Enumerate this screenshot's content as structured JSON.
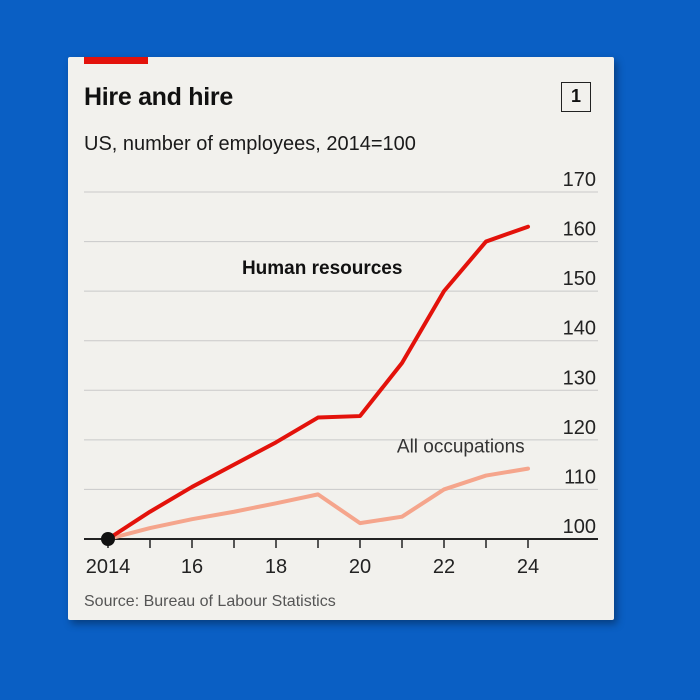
{
  "header": {
    "title": "Hire and hire",
    "subtitle": "US, number of employees, 2014=100",
    "chart_number": "1"
  },
  "footer": {
    "source": "Source: Bureau of Labour Statistics"
  },
  "colors": {
    "background": "#0a5fc4",
    "card": "#f2f1ed",
    "accent": "#e3120b",
    "human_resources": "#e3120b",
    "all_occupations": "#f5a58c"
  },
  "chart_data": {
    "type": "line",
    "title": "Hire and hire",
    "subtitle": "US, number of employees, 2014=100",
    "xlabel": "",
    "ylabel": "",
    "xlim": [
      2014,
      2024
    ],
    "ylim": [
      100,
      170
    ],
    "x_ticks": [
      2014,
      2015,
      2016,
      2017,
      2018,
      2019,
      2020,
      2021,
      2022,
      2023,
      2024
    ],
    "x_tick_labels": [
      {
        "x": 2014,
        "label": "2014"
      },
      {
        "x": 2016,
        "label": "16"
      },
      {
        "x": 2018,
        "label": "18"
      },
      {
        "x": 2020,
        "label": "20"
      },
      {
        "x": 2022,
        "label": "22"
      },
      {
        "x": 2024,
        "label": "24"
      }
    ],
    "y_ticks": [
      100,
      110,
      120,
      130,
      140,
      150,
      160,
      170
    ],
    "grid": true,
    "series": [
      {
        "name": "Human resources",
        "x": [
          2014,
          2015,
          2016,
          2017,
          2018,
          2019,
          2020,
          2021,
          2022,
          2023,
          2024
        ],
        "values": [
          100,
          105.5,
          110.5,
          115,
          119.5,
          124.5,
          124.8,
          135.5,
          150,
          160,
          163
        ]
      },
      {
        "name": "All occupations",
        "x": [
          2014,
          2015,
          2016,
          2017,
          2018,
          2019,
          2020,
          2021,
          2022,
          2023,
          2024
        ],
        "values": [
          100,
          102.2,
          104,
          105.5,
          107.2,
          109,
          103.2,
          104.5,
          110,
          112.8,
          114.2
        ]
      }
    ],
    "annotations": [
      {
        "text": "Human resources",
        "x": 2019.1,
        "y": 153.5,
        "series": "Human resources"
      },
      {
        "text": "All occupations",
        "x": 2022.4,
        "y": 117.5,
        "series": "All occupations"
      }
    ],
    "start_marker": {
      "x": 2014,
      "y": 100
    }
  }
}
